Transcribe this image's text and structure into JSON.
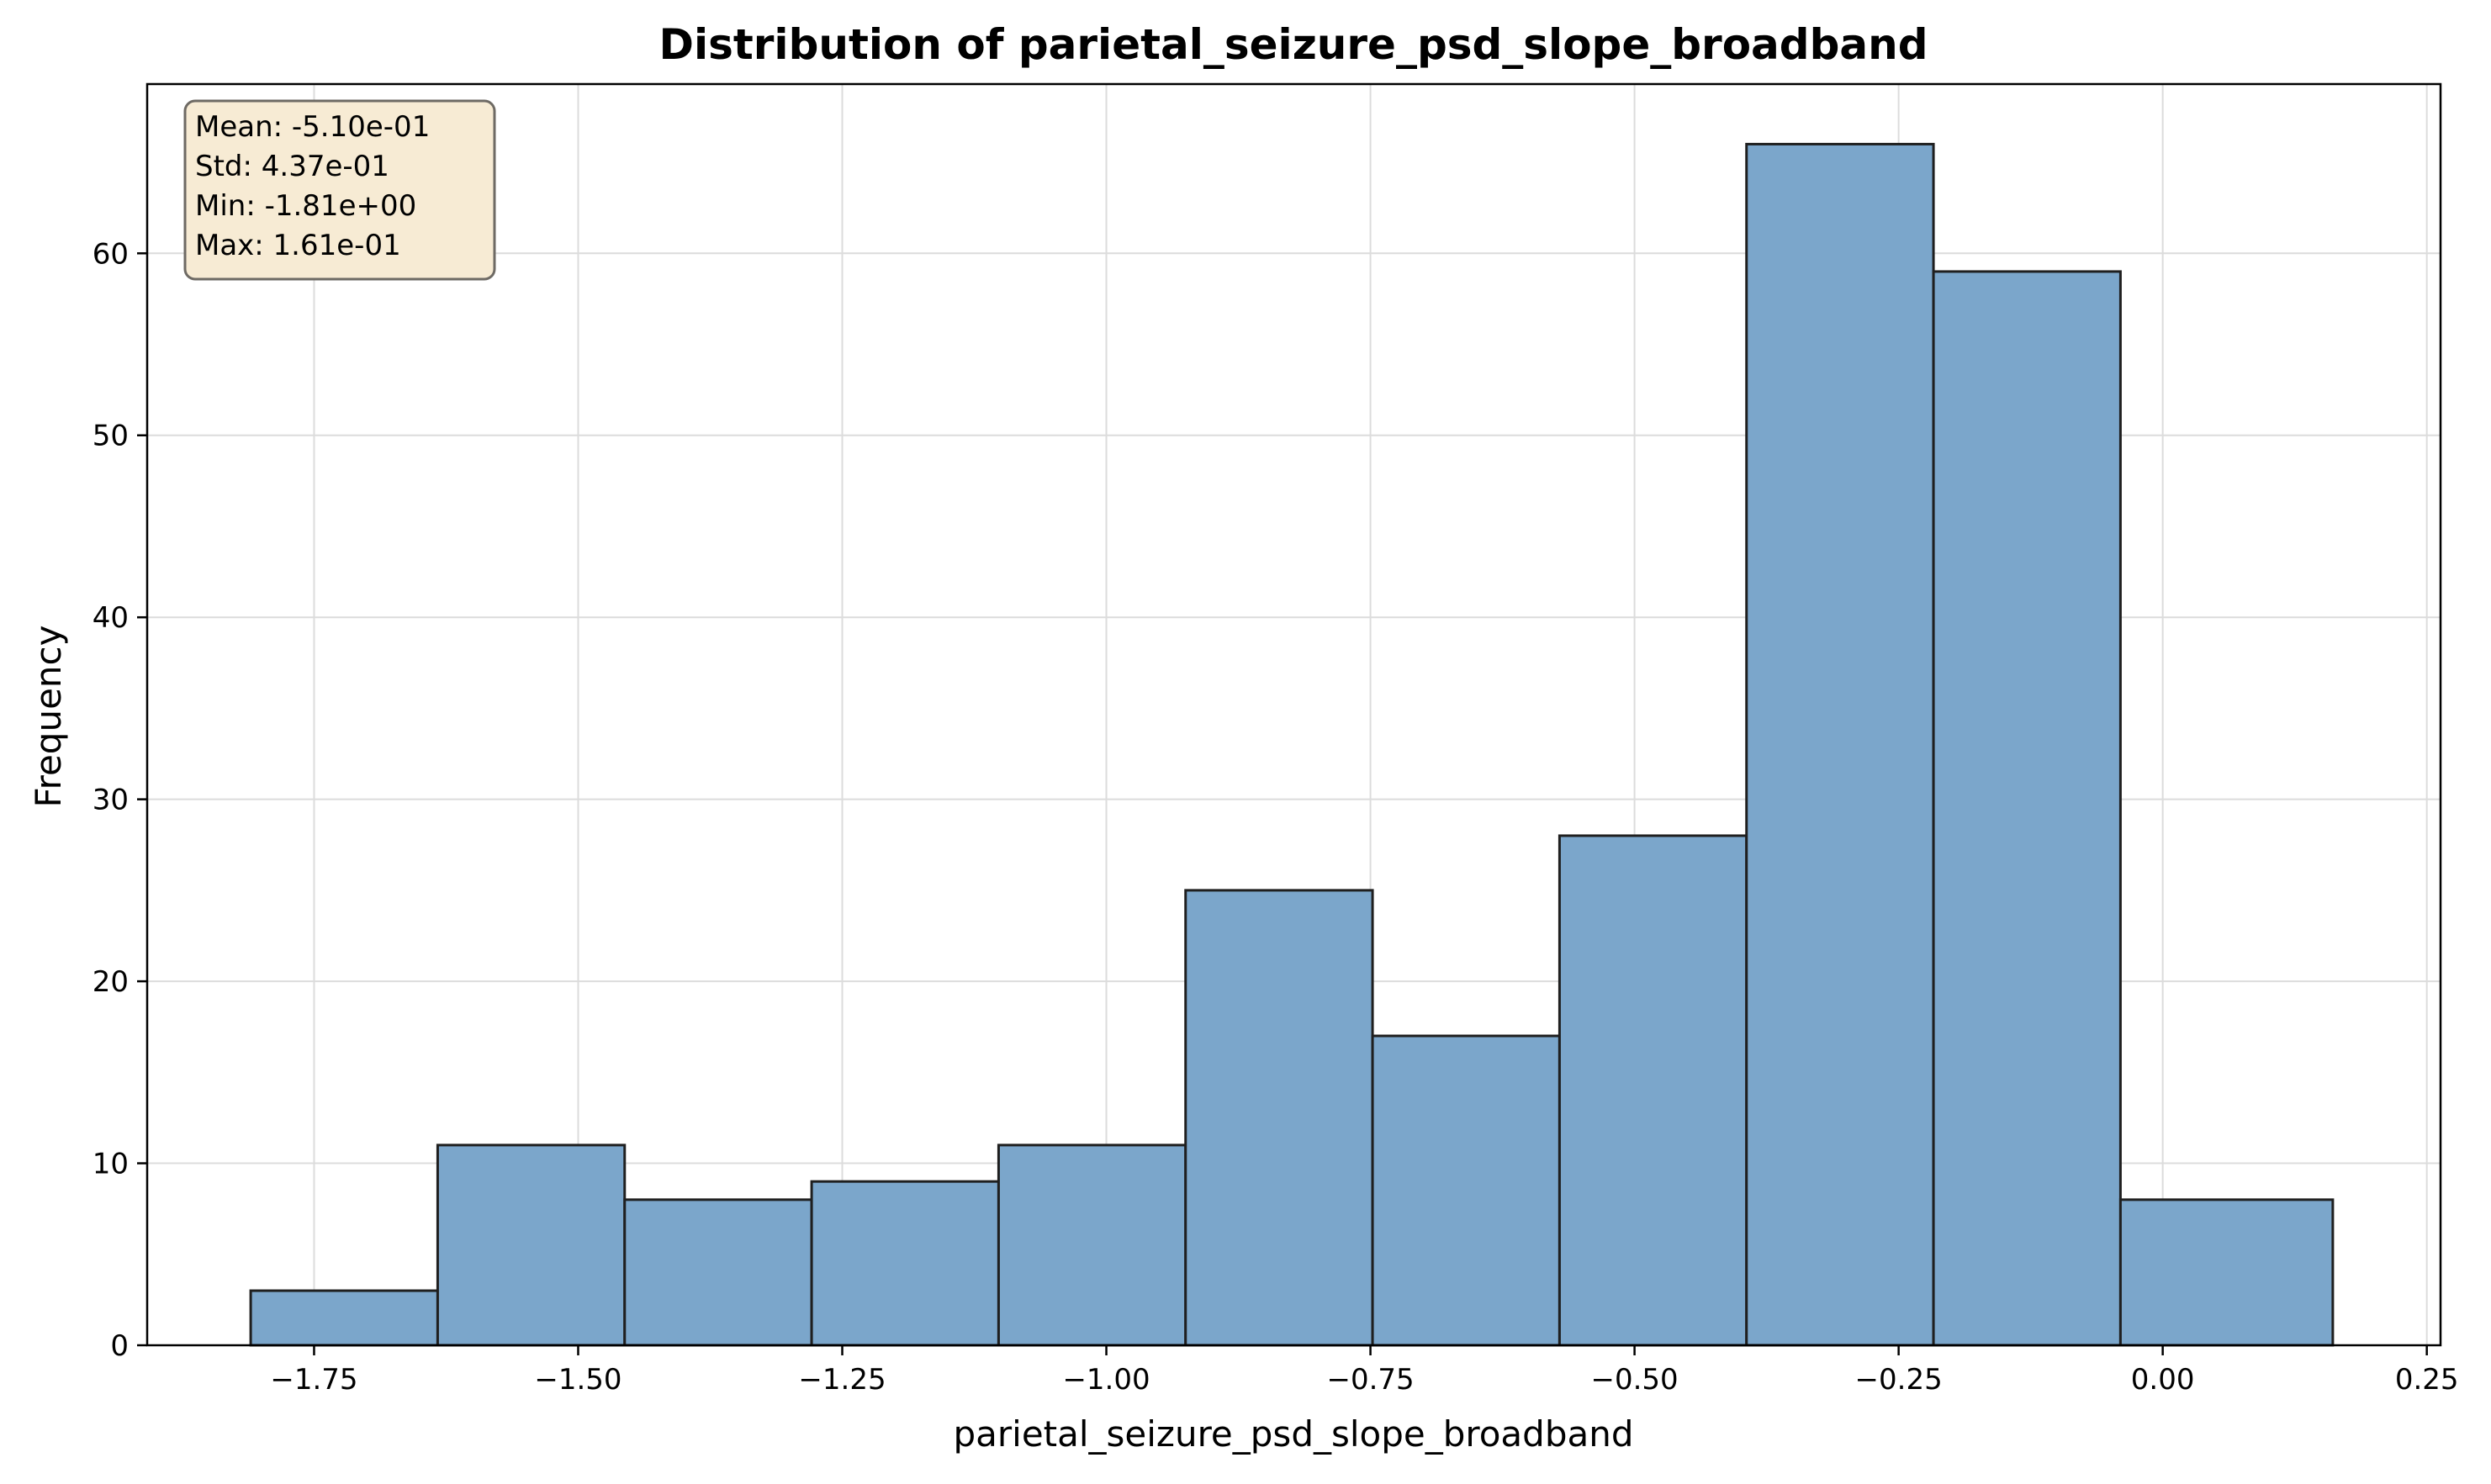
{
  "chart_data": {
    "type": "histogram",
    "title": "Distribution of parietal_seizure_psd_slope_broadband",
    "xlabel": "parietal_seizure_psd_slope_broadband",
    "ylabel": "Frequency",
    "xlim": [
      -1.908,
      0.263
    ],
    "ylim": [
      0,
      69.3
    ],
    "bins": [
      {
        "x0": -1.81,
        "x1": -1.633,
        "count": 3
      },
      {
        "x0": -1.633,
        "x1": -1.456,
        "count": 11
      },
      {
        "x0": -1.456,
        "x1": -1.279,
        "count": 8
      },
      {
        "x0": -1.279,
        "x1": -1.102,
        "count": 9
      },
      {
        "x0": -1.102,
        "x1": -0.925,
        "count": 11
      },
      {
        "x0": -0.925,
        "x1": -0.748,
        "count": 25
      },
      {
        "x0": -0.748,
        "x1": -0.571,
        "count": 17
      },
      {
        "x0": -0.571,
        "x1": -0.394,
        "count": 28
      },
      {
        "x0": -0.394,
        "x1": -0.217,
        "count": 66
      },
      {
        "x0": -0.217,
        "x1": -0.04,
        "count": 59
      },
      {
        "x0": -0.04,
        "x1": 0.161,
        "count": 8
      }
    ],
    "xticks": [
      {
        "value": -1.75,
        "label": "−1.75"
      },
      {
        "value": -1.5,
        "label": "−1.50"
      },
      {
        "value": -1.25,
        "label": "−1.25"
      },
      {
        "value": -1.0,
        "label": "−1.00"
      },
      {
        "value": -0.75,
        "label": "−0.75"
      },
      {
        "value": -0.5,
        "label": "−0.50"
      },
      {
        "value": -0.25,
        "label": "−0.25"
      },
      {
        "value": 0.0,
        "label": "0.00"
      },
      {
        "value": 0.25,
        "label": "0.25"
      }
    ],
    "yticks": [
      {
        "value": 0,
        "label": "0"
      },
      {
        "value": 10,
        "label": "10"
      },
      {
        "value": 20,
        "label": "20"
      },
      {
        "value": 30,
        "label": "30"
      },
      {
        "value": 40,
        "label": "40"
      },
      {
        "value": 50,
        "label": "50"
      },
      {
        "value": 60,
        "label": "60"
      }
    ],
    "grid": true,
    "bar_color": "#7ba6cb",
    "bar_edge_color": "#1f1f1f",
    "stats_box": {
      "placement": "top-left",
      "lines": [
        "Mean: -5.10e-01",
        "Std: 4.37e-01",
        "Min: -1.81e+00",
        "Max: 1.61e-01"
      ],
      "background": "#f7ebd4",
      "border": "#6e6a64"
    }
  }
}
